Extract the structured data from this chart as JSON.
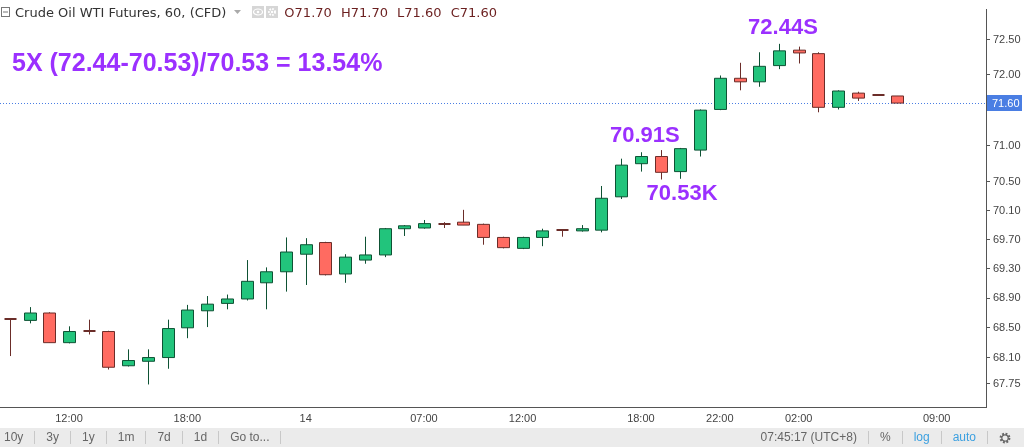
{
  "chart_data": {
    "type": "candlestick",
    "title": "Crude Oil WTI Futures, 60, (CFD)",
    "subtitle": "O71.70 H71.70 L71.60 C71.60",
    "categories": [
      null,
      null,
      null,
      "12:00",
      null,
      null,
      null,
      null,
      null,
      "18:00",
      null,
      null,
      null,
      null,
      null,
      "14",
      null,
      null,
      null,
      null,
      null,
      "07:00",
      null,
      null,
      null,
      null,
      "12:00",
      null,
      null,
      null,
      null,
      null,
      "18:00",
      null,
      null,
      null,
      "22:00",
      null,
      null,
      null,
      "02:00",
      null,
      null,
      null,
      null,
      null,
      null,
      "09:00",
      null,
      null
    ],
    "ohlc": [
      [
        68.62,
        68.62,
        68.12,
        68.61
      ],
      [
        68.6,
        68.78,
        68.56,
        68.7
      ],
      [
        68.7,
        68.71,
        68.3,
        68.3
      ],
      [
        68.3,
        68.52,
        68.29,
        68.45
      ],
      [
        68.46,
        68.61,
        68.41,
        68.45
      ],
      [
        68.45,
        68.46,
        67.94,
        67.97
      ],
      [
        67.99,
        68.21,
        67.98,
        68.06
      ],
      [
        68.05,
        68.21,
        67.74,
        68.1
      ],
      [
        68.1,
        68.61,
        67.95,
        68.49
      ],
      [
        68.5,
        68.81,
        68.36,
        68.74
      ],
      [
        68.73,
        68.93,
        68.51,
        68.82
      ],
      [
        68.83,
        68.95,
        68.75,
        68.89
      ],
      [
        68.89,
        69.42,
        68.87,
        69.13
      ],
      [
        69.11,
        69.32,
        68.75,
        69.26
      ],
      [
        69.26,
        69.73,
        68.99,
        69.53
      ],
      [
        69.5,
        69.72,
        69.08,
        69.63
      ],
      [
        69.66,
        69.67,
        69.21,
        69.22
      ],
      [
        69.23,
        69.5,
        69.11,
        69.46
      ],
      [
        69.42,
        69.74,
        69.37,
        69.49
      ],
      [
        69.49,
        69.86,
        69.46,
        69.85
      ],
      [
        69.85,
        69.9,
        69.75,
        69.89
      ],
      [
        69.86,
        69.97,
        69.85,
        69.92
      ],
      [
        69.91,
        69.94,
        69.86,
        69.9
      ],
      [
        69.94,
        70.11,
        69.9,
        69.9
      ],
      [
        69.91,
        69.92,
        69.63,
        69.73
      ],
      [
        69.73,
        69.74,
        69.58,
        69.59
      ],
      [
        69.58,
        69.74,
        69.57,
        69.73
      ],
      [
        69.73,
        69.85,
        69.61,
        69.82
      ],
      [
        69.83,
        69.84,
        69.74,
        69.82
      ],
      [
        69.82,
        69.9,
        69.81,
        69.85
      ],
      [
        69.83,
        70.44,
        69.8,
        70.27
      ],
      [
        70.29,
        70.82,
        70.26,
        70.73
      ],
      [
        70.75,
        70.91,
        70.64,
        70.85
      ],
      [
        70.85,
        70.94,
        70.53,
        70.63
      ],
      [
        70.64,
        70.97,
        70.54,
        70.96
      ],
      [
        70.94,
        71.51,
        70.85,
        71.5
      ],
      [
        71.51,
        71.99,
        71.5,
        71.95
      ],
      [
        71.95,
        72.17,
        71.78,
        71.9
      ],
      [
        71.9,
        72.32,
        71.83,
        72.12
      ],
      [
        72.13,
        72.44,
        72.08,
        72.34
      ],
      [
        72.35,
        72.4,
        72.16,
        72.31
      ],
      [
        72.3,
        72.32,
        71.47,
        71.54
      ],
      [
        71.54,
        71.78,
        71.51,
        71.77
      ],
      [
        71.74,
        71.76,
        71.63,
        71.67
      ],
      [
        71.72,
        71.72,
        71.71,
        71.71
      ],
      [
        71.7,
        71.7,
        71.6,
        71.6
      ],
      null,
      null,
      null,
      null
    ],
    "colors": [
      "#6b2d29",
      "#22c47c",
      "#ff6b61",
      "#22c47c",
      "#6b2d29",
      "#ff6b61",
      "#22c47c",
      "#22c47c",
      "#22c47c",
      "#22c47c",
      "#22c47c",
      "#22c47c",
      "#22c47c",
      "#22c47c",
      "#22c47c",
      "#22c47c",
      "#ff6b61",
      "#22c47c",
      "#22c47c",
      "#22c47c",
      "#22c47c",
      "#22c47c",
      "#6b2d29",
      "#ff6b61",
      "#ff6b61",
      "#ff6b61",
      "#22c47c",
      "#22c47c",
      "#6b2d29",
      "#22c47c",
      "#22c47c",
      "#22c47c",
      "#22c47c",
      "#ff6b61",
      "#22c47c",
      "#22c47c",
      "#22c47c",
      "#ff6b61",
      "#22c47c",
      "#22c47c",
      "#ff6b61",
      "#ff6b61",
      "#22c47c",
      "#ff6b61",
      "#6b2d29",
      "#ff6b61",
      null,
      null,
      null,
      null
    ],
    "ylim": [
      67.44,
      72.93
    ],
    "yticks": [
      {
        "value": 67.75,
        "label": "67.75"
      },
      {
        "value": 68.1,
        "label": "68.10"
      },
      {
        "value": 68.5,
        "label": "68.50"
      },
      {
        "value": 68.9,
        "label": "68.90"
      },
      {
        "value": 69.3,
        "label": "69.30"
      },
      {
        "value": 69.7,
        "label": "69.70"
      },
      {
        "value": 70.1,
        "label": "70.10"
      },
      {
        "value": 70.5,
        "label": "70.50"
      },
      {
        "value": 71,
        "label": "71.00"
      },
      {
        "value": 71.5,
        "label": null
      },
      {
        "value": 72,
        "label": "72.00"
      },
      {
        "value": 72.5,
        "label": "72.50"
      }
    ],
    "log": true,
    "ref_lines": [
      {
        "axis": "y",
        "value": 71.6,
        "label": "71.60",
        "color": "#4a7ee3",
        "line_style": "dotted"
      }
    ],
    "annotations": [
      "5X (72.44-70.53)/70.53 = 13.54%",
      {
        "text": "72.44S",
        "y": 72.44
      },
      {
        "text": "70.91S",
        "y": 70.91
      },
      {
        "text": "70.53K",
        "y": 70.53
      },
      "10y",
      "3y",
      "1y",
      "1m",
      "7d",
      "1d",
      "Go to...",
      "07:45:17 (UTC+8)",
      "%",
      "log",
      "auto"
    ]
  }
}
